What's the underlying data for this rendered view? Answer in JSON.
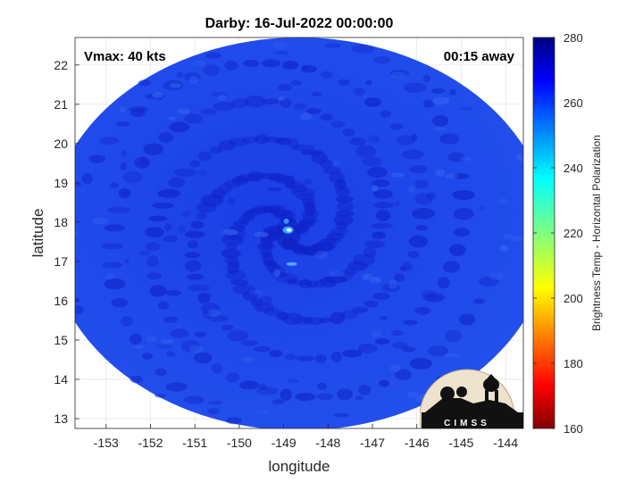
{
  "chart_data": {
    "type": "heatmap",
    "title": "Darby: 16-Jul-2022 00:00:00",
    "xlabel": "longitude",
    "ylabel": "latitude",
    "xlim": [
      -153.7,
      -143.6
    ],
    "ylim": [
      12.75,
      22.7
    ],
    "x_ticks": [
      -153,
      -152,
      -151,
      -150,
      -149,
      -148,
      -147,
      -146,
      -145,
      -144
    ],
    "y_ticks": [
      13,
      14,
      15,
      16,
      17,
      18,
      19,
      20,
      21,
      22
    ],
    "grid": true,
    "annotations": {
      "vmax": "Vmax: 40 kts",
      "time_away": "00:15 away"
    },
    "colorbar": {
      "label": "Brightness Temp - Horizontal Polarization",
      "range": [
        160,
        280
      ],
      "ticks": [
        160,
        180,
        200,
        220,
        240,
        260,
        280
      ],
      "colormap": "jet"
    },
    "storm_center": {
      "lon": -148.9,
      "lat": 17.8
    },
    "swath": {
      "center_lon": -148.65,
      "center_lat": 17.7,
      "radius_lon": 5.65,
      "radius_lat": 5.0
    },
    "logo": "CIMSS"
  }
}
